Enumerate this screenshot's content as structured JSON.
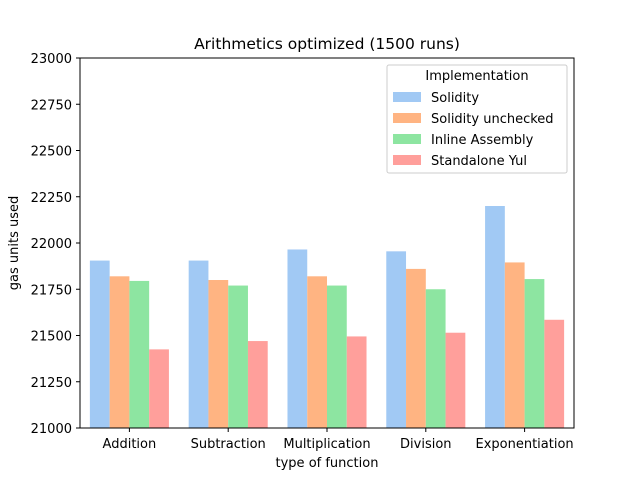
{
  "chart_data": {
    "type": "bar",
    "title": "Arithmetics optimized (1500 runs)",
    "xlabel": "type of function",
    "ylabel": "gas units used",
    "ylim": [
      21000,
      23000
    ],
    "yticks": [
      21000,
      21250,
      21500,
      21750,
      22000,
      22250,
      22500,
      22750,
      23000
    ],
    "grid": false,
    "categories": [
      "Addition",
      "Subtraction",
      "Multiplication",
      "Division",
      "Exponentiation"
    ],
    "legend": {
      "title": "Implementation",
      "placement": "top-right"
    },
    "series": [
      {
        "name": "Solidity",
        "color": "#a1c9f4",
        "values": [
          21905,
          21905,
          21965,
          21955,
          22200
        ]
      },
      {
        "name": "Solidity unchecked",
        "color": "#ffb482",
        "values": [
          21820,
          21800,
          21820,
          21860,
          21895
        ]
      },
      {
        "name": "Inline Assembly",
        "color": "#8de5a1",
        "values": [
          21795,
          21770,
          21770,
          21750,
          21805
        ]
      },
      {
        "name": "Standalone Yul",
        "color": "#ff9f9b",
        "values": [
          21425,
          21470,
          21495,
          21515,
          21585
        ]
      }
    ]
  }
}
